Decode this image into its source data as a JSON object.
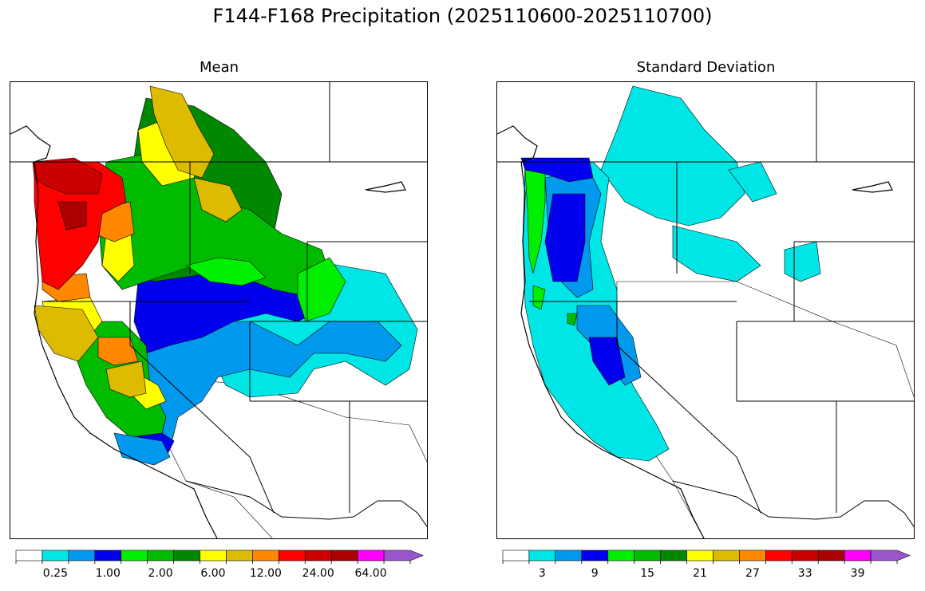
{
  "figure": {
    "title": "F144-F168 Precipitation (2025110600-2025110700)"
  },
  "panels": [
    {
      "id": "mean",
      "title": "Mean",
      "colorbar": {
        "colors": [
          "#ffffff",
          "#00e5e5",
          "#0099ee",
          "#0000ee",
          "#00ee00",
          "#00bb00",
          "#008800",
          "#ffff00",
          "#ddbb00",
          "#ff8800",
          "#ff0000",
          "#cc0000",
          "#aa0000",
          "#ff00ff",
          "#9955cc"
        ],
        "tick_labels": [
          "0.25",
          "1.00",
          "2.00",
          "6.00",
          "12.00",
          "24.00",
          "64.00"
        ],
        "tick_bins": [
          1,
          3,
          5,
          7,
          9,
          11,
          13
        ],
        "extend": "max"
      }
    },
    {
      "id": "stddev",
      "title": "Standard Deviation",
      "colorbar": {
        "colors": [
          "#ffffff",
          "#00e5e5",
          "#0099ee",
          "#0000ee",
          "#00ee00",
          "#00bb00",
          "#008800",
          "#ffff00",
          "#ddbb00",
          "#ff8800",
          "#ff0000",
          "#cc0000",
          "#aa0000",
          "#ff00ff",
          "#9955cc"
        ],
        "tick_labels": [
          "3",
          "9",
          "15",
          "21",
          "27",
          "33",
          "39"
        ],
        "tick_bins": [
          1,
          3,
          5,
          7,
          9,
          11,
          13
        ],
        "extend": "max"
      }
    }
  ]
}
